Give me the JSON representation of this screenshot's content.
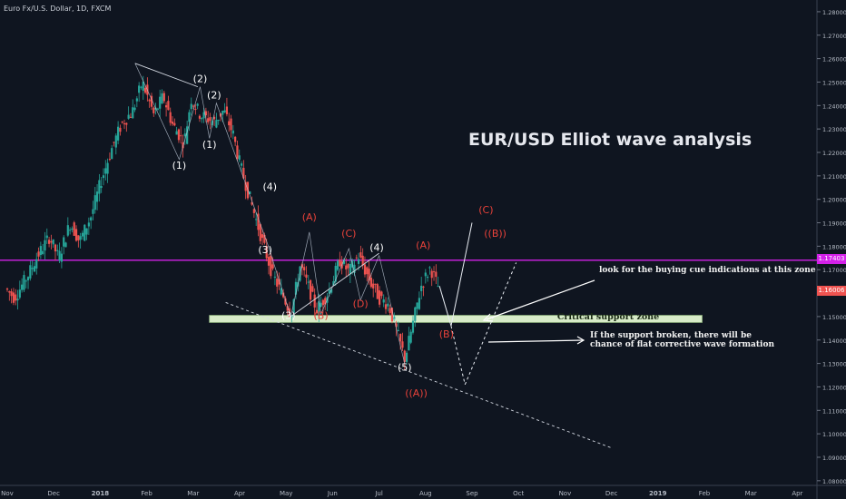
{
  "symbol": {
    "text": "Euro Fx/U.S. Dollar, 1D, FXCM"
  },
  "headline": "EUR/USD Elliot wave analysis",
  "notes": {
    "buy_cue": "look for the buying cue indications at this zone",
    "support_broken_line1": "If the support broken, there will be",
    "support_broken_line2": "chance of flat corrective wave formation"
  },
  "support_zone_label": "Critical support zone",
  "price_tags": {
    "resistance": "1.17403",
    "current": "1.16006"
  },
  "colors": {
    "background": "#0f1520",
    "bull": "#26a69a",
    "bear": "#ef5350",
    "resistance": "#d321e8",
    "zone_fill": "#d7ebc8",
    "wave_white": "#ffffff",
    "wave_red": "#e8423a"
  },
  "chart_data": {
    "type": "candlestick",
    "instrument": "Euro Fx/U.S. Dollar",
    "timeframe": "1D",
    "source": "FXCM",
    "y_ticks": [
      "1.28000",
      "1.27000",
      "1.26000",
      "1.25000",
      "1.24000",
      "1.23000",
      "1.22000",
      "1.21000",
      "1.20000",
      "1.19000",
      "1.18000",
      "1.17000",
      "1.16000",
      "1.15000",
      "1.14000",
      "1.13000",
      "1.12000",
      "1.11000",
      "1.10000",
      "1.09000",
      "1.08000"
    ],
    "x_ticks": [
      "Nov",
      "Dec",
      "2018",
      "Feb",
      "Mar",
      "Apr",
      "May",
      "Jun",
      "Jul",
      "Aug",
      "Sep",
      "Oct",
      "Nov",
      "Dec",
      "2019",
      "Feb",
      "Mar",
      "Apr"
    ],
    "ylim": [
      1.078,
      1.285
    ],
    "resistance_level": 1.17403,
    "current_price": 1.16006,
    "support_zone": {
      "low": 1.1475,
      "high": 1.1505,
      "from": "May",
      "to": "Feb"
    },
    "price_path": [
      [
        0.0,
        1.162
      ],
      [
        0.2,
        1.158
      ],
      [
        0.5,
        1.168
      ],
      [
        0.7,
        1.176
      ],
      [
        0.95,
        1.184
      ],
      [
        1.15,
        1.175
      ],
      [
        1.4,
        1.19
      ],
      [
        1.6,
        1.182
      ],
      [
        1.85,
        1.193
      ],
      [
        2.05,
        1.207
      ],
      [
        2.3,
        1.222
      ],
      [
        2.5,
        1.232
      ],
      [
        2.75,
        1.238
      ],
      [
        2.95,
        1.25
      ],
      [
        3.2,
        1.236
      ],
      [
        3.4,
        1.244
      ],
      [
        3.6,
        1.232
      ],
      [
        3.85,
        1.224
      ],
      [
        4.0,
        1.243
      ],
      [
        4.2,
        1.236
      ],
      [
        4.5,
        1.233
      ],
      [
        4.7,
        1.238
      ],
      [
        4.9,
        1.228
      ],
      [
        5.05,
        1.215
      ],
      [
        5.3,
        1.198
      ],
      [
        5.55,
        1.181
      ],
      [
        5.75,
        1.168
      ],
      [
        6.0,
        1.158
      ],
      [
        6.15,
        1.151
      ],
      [
        6.35,
        1.172
      ],
      [
        6.5,
        1.164
      ],
      [
        6.7,
        1.153
      ],
      [
        6.95,
        1.16
      ],
      [
        7.2,
        1.174
      ],
      [
        7.4,
        1.169
      ],
      [
        7.6,
        1.176
      ],
      [
        7.85,
        1.165
      ],
      [
        8.05,
        1.158
      ],
      [
        8.25,
        1.155
      ],
      [
        8.45,
        1.142
      ],
      [
        8.6,
        1.132
      ],
      [
        8.75,
        1.145
      ],
      [
        8.95,
        1.163
      ],
      [
        9.15,
        1.171
      ],
      [
        9.3,
        1.163
      ]
    ],
    "projections": [
      {
        "from": [
          9.3,
          1.163
        ],
        "to": [
          9.55,
          1.146
        ],
        "style": "solid"
      },
      {
        "from": [
          9.55,
          1.146
        ],
        "to": [
          10.0,
          1.19
        ],
        "style": "solid"
      },
      {
        "from": [
          9.55,
          1.146
        ],
        "to": [
          9.85,
          1.121
        ],
        "style": "dashed"
      },
      {
        "from": [
          9.85,
          1.121
        ],
        "to": [
          10.95,
          1.173
        ],
        "style": "dashed"
      }
    ],
    "trendlines": [
      {
        "from": [
          4.7,
          1.156
        ],
        "to": [
          13.0,
          1.094
        ],
        "style": "dashed"
      },
      {
        "from": [
          6.1,
          1.15
        ],
        "to": [
          8.0,
          1.177
        ],
        "style": "solid"
      },
      {
        "from": [
          2.75,
          1.258
        ],
        "to": [
          4.1,
          1.248
        ],
        "style": "solid"
      }
    ],
    "wave_labels": [
      {
        "text": "(2)",
        "x": 4.15,
        "y": 1.25,
        "color": "white"
      },
      {
        "text": "(2)",
        "x": 4.45,
        "y": 1.243,
        "color": "white"
      },
      {
        "text": "(1)",
        "x": 3.7,
        "y": 1.213,
        "color": "white"
      },
      {
        "text": "(1)",
        "x": 4.35,
        "y": 1.222,
        "color": "white"
      },
      {
        "text": "(4)",
        "x": 5.65,
        "y": 1.204,
        "color": "white"
      },
      {
        "text": "(3)",
        "x": 5.55,
        "y": 1.177,
        "color": "white"
      },
      {
        "text": "(3)",
        "x": 6.05,
        "y": 1.149,
        "color": "white"
      },
      {
        "text": "(4)",
        "x": 7.95,
        "y": 1.178,
        "color": "white"
      },
      {
        "text": "(5)",
        "x": 8.55,
        "y": 1.127,
        "color": "white"
      },
      {
        "text": "(A)",
        "x": 6.5,
        "y": 1.191,
        "color": "red"
      },
      {
        "text": "(B)",
        "x": 6.75,
        "y": 1.149,
        "color": "red"
      },
      {
        "text": "(C)",
        "x": 7.35,
        "y": 1.184,
        "color": "red"
      },
      {
        "text": "(D)",
        "x": 7.6,
        "y": 1.154,
        "color": "red"
      },
      {
        "text": "(A)",
        "x": 8.95,
        "y": 1.179,
        "color": "red"
      },
      {
        "text": "(B)",
        "x": 9.45,
        "y": 1.141,
        "color": "red"
      },
      {
        "text": "(C)",
        "x": 10.3,
        "y": 1.194,
        "color": "red"
      },
      {
        "text": "((B))",
        "x": 10.5,
        "y": 1.184,
        "color": "red"
      },
      {
        "text": "((A))",
        "x": 8.8,
        "y": 1.116,
        "color": "red"
      }
    ]
  }
}
